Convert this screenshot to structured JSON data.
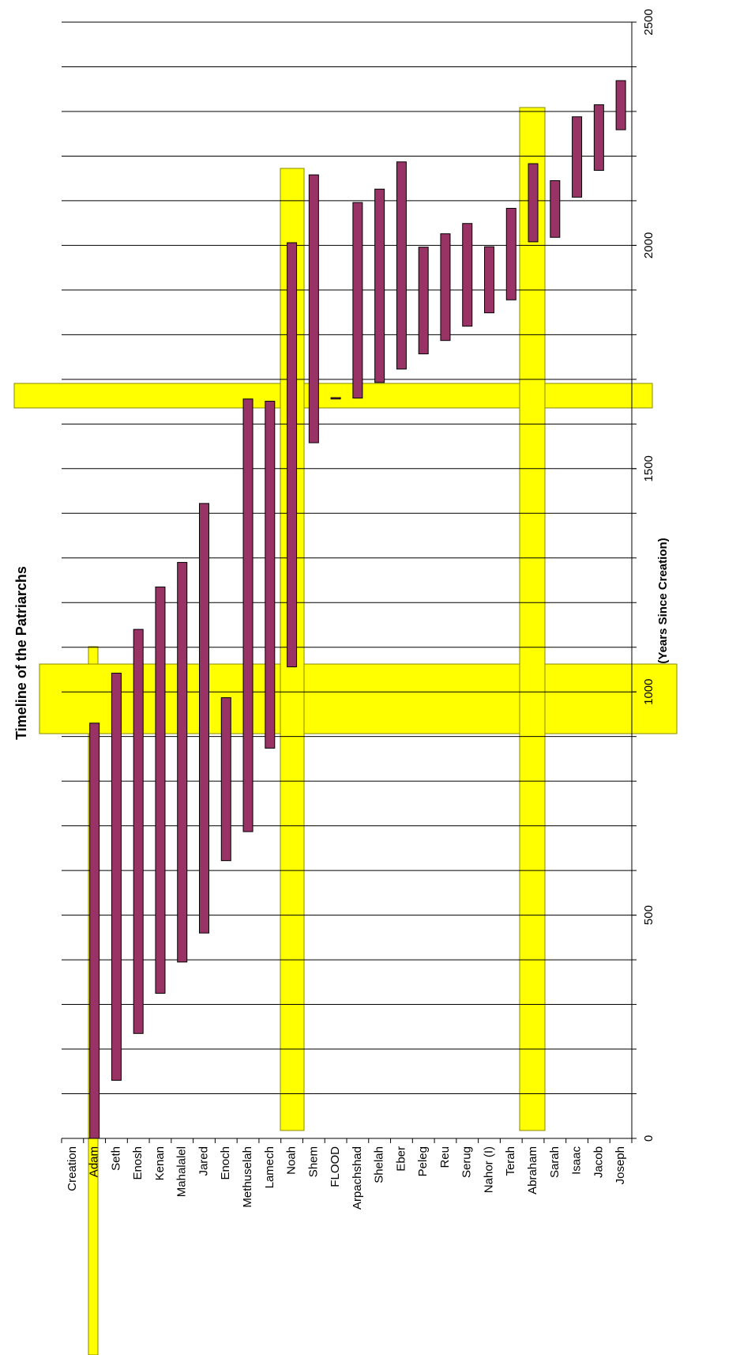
{
  "chart_data": {
    "type": "floating_bar",
    "title": "Timeline of the Patriarchs",
    "value_axis_title": "(Years Since Creation)",
    "categories": [
      "Creation",
      "Adam",
      "Seth",
      "Enosh",
      "Kenan",
      "Mahalalel",
      "Jared",
      "Enoch",
      "Methuselah",
      "Lamech",
      "Noah",
      "Shem",
      "FLOOD",
      "Arpachshad",
      "Shelah",
      "Eber",
      "Peleg",
      "Reu",
      "Serug",
      "Nahor (I)",
      "Terah",
      "Abraham",
      "Sarah",
      "Isaac",
      "Jacob",
      "Joseph"
    ],
    "starts": [
      null,
      0,
      130,
      235,
      325,
      395,
      460,
      622,
      687,
      874,
      1056,
      1558,
      1656,
      1658,
      1693,
      1723,
      1757,
      1787,
      1819,
      1849,
      1878,
      2008,
      2018,
      2108,
      2168,
      2259
    ],
    "ends": [
      null,
      930,
      1042,
      1140,
      1235,
      1290,
      1422,
      987,
      1656,
      1651,
      2006,
      2158,
      1659,
      2096,
      2126,
      2187,
      1996,
      2026,
      2049,
      1997,
      2083,
      2183,
      2145,
      2288,
      2315,
      2369
    ],
    "color": "#993366",
    "xlim": [
      0,
      2500
    ],
    "xticks": [
      0,
      500,
      1000,
      1500,
      2000,
      2500
    ],
    "grid_values": [
      100,
      200,
      300,
      400,
      500,
      600,
      700,
      800,
      900,
      1000,
      1100,
      1200,
      1300,
      1400,
      1500,
      1600,
      1700,
      1800,
      1900,
      2000,
      2100,
      2200,
      2300,
      2400,
      2500
    ],
    "grid": true
  }
}
